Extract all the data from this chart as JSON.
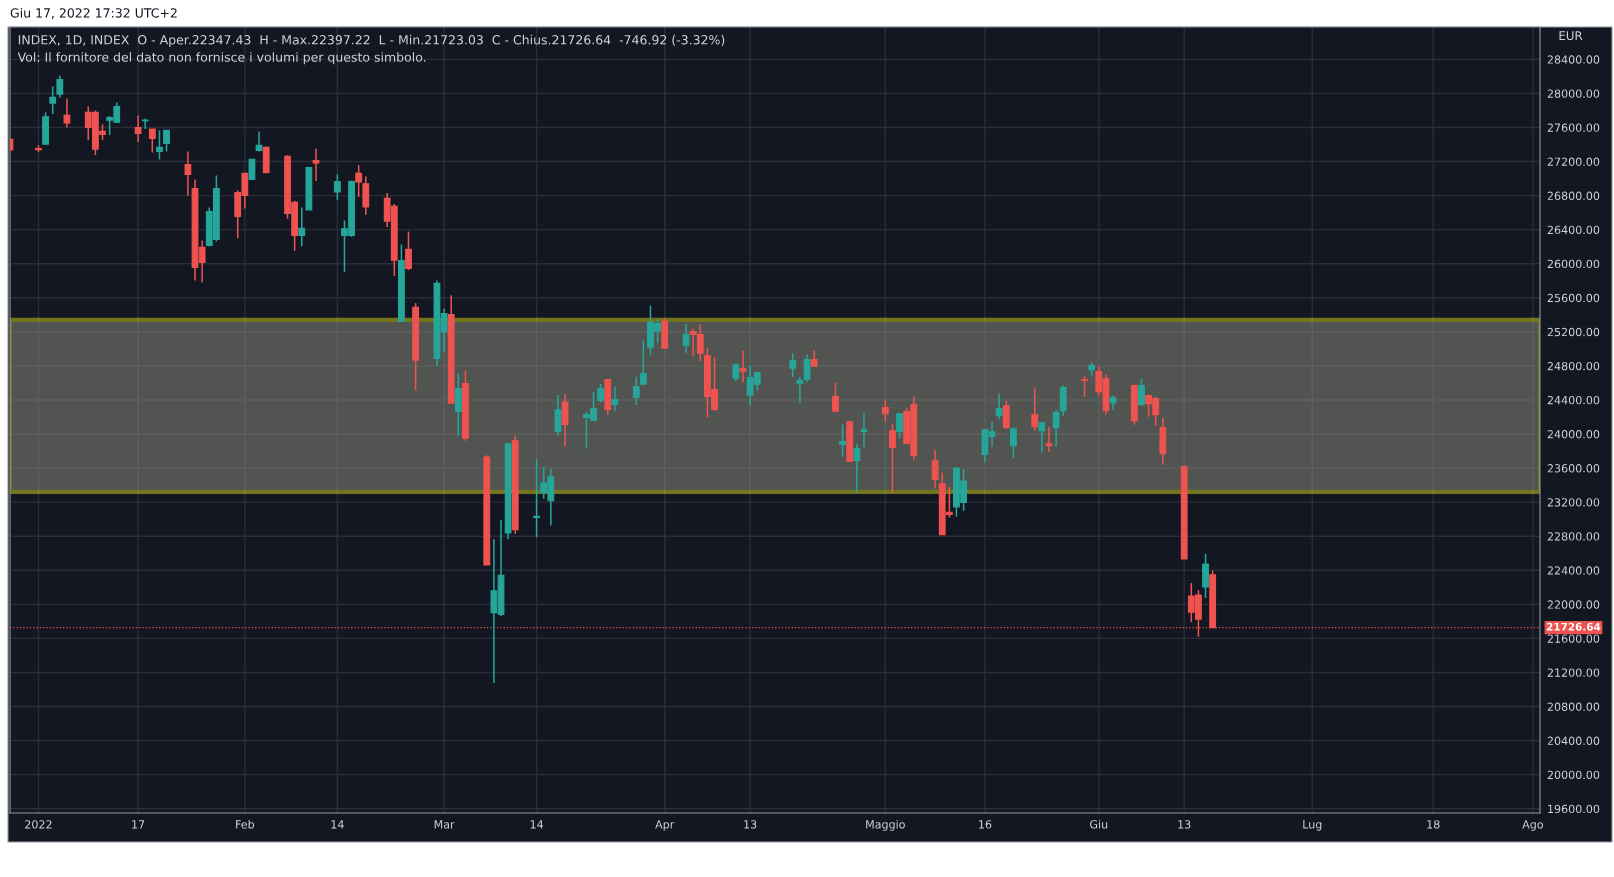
{
  "chart_data": {
    "type": "candlestick",
    "title": "INDEX, 1D, INDEX  O - Aper.22347.43  H - Max.22397.22  L - Min.21723.03  C - Chius.21726.64  -746.92 (-3.32%)",
    "ylabel": "EUR",
    "annotations": [
      "Giu 17, 2022 17:32 UTC+2",
      "Vol: Il fornitore del dato non fornisce i volumi per questo simbolo."
    ],
    "x": [
      "2021-12-30",
      "2022-01-03",
      "2022-01-04",
      "2022-01-05",
      "2022-01-06",
      "2022-01-07",
      "2022-01-10",
      "2022-01-11",
      "2022-01-12",
      "2022-01-13",
      "2022-01-14",
      "2022-01-17",
      "2022-01-18",
      "2022-01-19",
      "2022-01-20",
      "2022-01-21",
      "2022-01-24",
      "2022-01-25",
      "2022-01-26",
      "2022-01-27",
      "2022-01-28",
      "2022-01-31",
      "2022-02-01",
      "2022-02-02",
      "2022-02-03",
      "2022-02-04",
      "2022-02-07",
      "2022-02-08",
      "2022-02-09",
      "2022-02-10",
      "2022-02-11",
      "2022-02-14",
      "2022-02-15",
      "2022-02-16",
      "2022-02-17",
      "2022-02-18",
      "2022-02-21",
      "2022-02-22",
      "2022-02-23",
      "2022-02-24",
      "2022-02-25",
      "2022-02-28",
      "2022-03-01",
      "2022-03-02",
      "2022-03-03",
      "2022-03-04",
      "2022-03-07",
      "2022-03-08",
      "2022-03-09",
      "2022-03-10",
      "2022-03-11",
      "2022-03-14",
      "2022-03-15",
      "2022-03-16",
      "2022-03-17",
      "2022-03-18",
      "2022-03-21",
      "2022-03-22",
      "2022-03-23",
      "2022-03-24",
      "2022-03-25",
      "2022-03-28",
      "2022-03-29",
      "2022-03-30",
      "2022-03-31",
      "2022-04-01",
      "2022-04-04",
      "2022-04-05",
      "2022-04-06",
      "2022-04-07",
      "2022-04-08",
      "2022-04-11",
      "2022-04-12",
      "2022-04-13",
      "2022-04-14",
      "2022-04-19",
      "2022-04-20",
      "2022-04-21",
      "2022-04-22",
      "2022-04-25",
      "2022-04-26",
      "2022-04-27",
      "2022-04-28",
      "2022-04-29",
      "2022-05-02",
      "2022-05-03",
      "2022-05-04",
      "2022-05-05",
      "2022-05-06",
      "2022-05-09",
      "2022-05-10",
      "2022-05-11",
      "2022-05-12",
      "2022-05-13",
      "2022-05-16",
      "2022-05-17",
      "2022-05-18",
      "2022-05-19",
      "2022-05-20",
      "2022-05-23",
      "2022-05-24",
      "2022-05-25",
      "2022-05-26",
      "2022-05-27",
      "2022-05-30",
      "2022-05-31",
      "2022-06-01",
      "2022-06-02",
      "2022-06-03",
      "2022-06-06",
      "2022-06-07",
      "2022-06-08",
      "2022-06-09",
      "2022-06-10",
      "2022-06-13",
      "2022-06-14",
      "2022-06-15",
      "2022-06-16",
      "2022-06-17"
    ],
    "ohlc": [
      [
        27460,
        27470,
        27330,
        27335
      ],
      [
        27354,
        27390,
        27310,
        27340
      ],
      [
        27405,
        27777,
        27400,
        27726
      ],
      [
        27886,
        28082,
        27757,
        27953
      ],
      [
        27992,
        28211,
        27953,
        28164
      ],
      [
        27742,
        27941,
        27600,
        27652
      ],
      [
        27777,
        27847,
        27452,
        27600
      ],
      [
        27777,
        27800,
        27276,
        27346
      ],
      [
        27554,
        27636,
        27452,
        27519
      ],
      [
        27687,
        27734,
        27511,
        27718
      ],
      [
        27663,
        27894,
        27663,
        27847
      ],
      [
        27600,
        27742,
        27429,
        27530
      ],
      [
        27679,
        27706,
        27581,
        27687
      ],
      [
        27581,
        27581,
        27307,
        27472
      ],
      [
        27319,
        27566,
        27225,
        27366
      ],
      [
        27413,
        27566,
        27319,
        27566
      ],
      [
        27166,
        27319,
        26802,
        27049
      ],
      [
        26884,
        26990,
        25804,
        25957
      ],
      [
        26192,
        26274,
        25781,
        26016
      ],
      [
        26215,
        26661,
        26204,
        26614
      ],
      [
        26286,
        27037,
        26262,
        26884
      ],
      [
        26837,
        26861,
        26301,
        26556
      ],
      [
        27061,
        27061,
        26649,
        26802
      ],
      [
        26990,
        27225,
        26990,
        27225
      ],
      [
        27331,
        27554,
        27319,
        27390
      ],
      [
        27366,
        27378,
        27061,
        27073
      ],
      [
        27263,
        27276,
        26529,
        26591
      ],
      [
        26722,
        26738,
        26151,
        26331
      ],
      [
        26331,
        26659,
        26205,
        26415
      ],
      [
        26633,
        27129,
        26633,
        27129
      ],
      [
        27213,
        27351,
        26973,
        27183
      ],
      [
        26843,
        27049,
        26751,
        26965
      ],
      [
        26331,
        26508,
        25903,
        26411
      ],
      [
        26331,
        26978,
        26314,
        26965
      ],
      [
        27061,
        27158,
        26784,
        26961
      ],
      [
        26940,
        27024,
        26575,
        26667
      ],
      [
        26768,
        26831,
        26432,
        26499
      ],
      [
        26675,
        26701,
        25857,
        26042
      ],
      [
        25324,
        26226,
        25324,
        26037
      ],
      [
        26168,
        26377,
        25924,
        25945
      ],
      [
        25488,
        25538,
        24514,
        24867
      ],
      [
        24887,
        25802,
        24799,
        25769
      ],
      [
        25199,
        25471,
        24959,
        25416
      ],
      [
        25404,
        25630,
        24363,
        24363
      ],
      [
        24266,
        24711,
        23977,
        24535
      ],
      [
        24594,
        24745,
        23922,
        23952
      ],
      [
        23729,
        23750,
        22462,
        22462
      ],
      [
        21903,
        22764,
        21076,
        22160
      ],
      [
        21882,
        22995,
        21860,
        22340
      ],
      [
        22839,
        23886,
        22764,
        23886
      ],
      [
        23921,
        23980,
        22827,
        22878
      ],
      [
        23020,
        23710,
        22788,
        23035
      ],
      [
        23310,
        23616,
        23239,
        23427
      ],
      [
        23216,
        23592,
        22925,
        23498
      ],
      [
        24031,
        24455,
        23984,
        24286
      ],
      [
        24376,
        24463,
        23855,
        24114
      ],
      [
        24196,
        24259,
        23831,
        24227
      ],
      [
        24161,
        24494,
        24161,
        24298
      ],
      [
        24396,
        24588,
        24369,
        24533
      ],
      [
        24639,
        24639,
        24227,
        24290
      ],
      [
        24349,
        24557,
        24271,
        24404
      ],
      [
        24431,
        24674,
        24337,
        24557
      ],
      [
        24584,
        25098,
        24584,
        24710
      ],
      [
        25020,
        25510,
        24925,
        25310
      ],
      [
        25208,
        25349,
        25067,
        25298
      ],
      [
        25325,
        25365,
        25008,
        25008
      ],
      [
        25043,
        25298,
        24949,
        25169
      ],
      [
        25204,
        25239,
        24914,
        25173
      ],
      [
        25169,
        25286,
        24855,
        24949
      ],
      [
        24918,
        25012,
        24196,
        24443
      ],
      [
        24522,
        24906,
        24278,
        24290
      ],
      [
        24655,
        24835,
        24620,
        24812
      ],
      [
        24769,
        24980,
        24608,
        24737
      ],
      [
        24455,
        24804,
        24337,
        24663
      ],
      [
        24584,
        24722,
        24514,
        24722
      ],
      [
        24773,
        24945,
        24667,
        24863
      ],
      [
        24596,
        24674,
        24361,
        24627
      ],
      [
        24643,
        24933,
        24608,
        24875
      ],
      [
        24875,
        24980,
        24796,
        24796
      ],
      [
        24439,
        24604,
        24267,
        24267
      ],
      [
        23880,
        24110,
        23737,
        23912
      ],
      [
        24145,
        24157,
        23678,
        23678
      ],
      [
        23690,
        23886,
        23310,
        23827
      ],
      [
        24031,
        24251,
        23843,
        24051
      ],
      [
        24310,
        24404,
        24137,
        24239
      ],
      [
        24039,
        24122,
        23310,
        23843
      ],
      [
        24031,
        24239,
        23949,
        24239
      ],
      [
        24263,
        24310,
        23890,
        23890
      ],
      [
        24345,
        24439,
        23702,
        23749
      ],
      [
        23686,
        23812,
        23361,
        23466
      ],
      [
        23416,
        23545,
        22819,
        22819
      ],
      [
        23082,
        23376,
        23020,
        23055
      ],
      [
        23145,
        23600,
        23031,
        23600
      ],
      [
        23196,
        23588,
        23098,
        23447
      ],
      [
        23761,
        24051,
        23667,
        24051
      ],
      [
        23973,
        24145,
        23851,
        24027
      ],
      [
        24216,
        24474,
        24173,
        24298
      ],
      [
        24333,
        24392,
        24063,
        24075
      ],
      [
        23863,
        24075,
        23722,
        24063
      ],
      [
        24227,
        24545,
        24039,
        24086
      ],
      [
        24039,
        24133,
        23784,
        24133
      ],
      [
        23886,
        24086,
        23792,
        23867
      ],
      [
        24074,
        24286,
        23851,
        24251
      ],
      [
        24274,
        24569,
        24216,
        24545
      ],
      [
        24639,
        24675,
        24439,
        24631
      ],
      [
        24757,
        24839,
        24675,
        24804
      ],
      [
        24733,
        24792,
        24451,
        24498
      ],
      [
        24651,
        24698,
        24227,
        24274
      ],
      [
        24369,
        24451,
        24286,
        24427
      ],
      [
        24569,
        24580,
        24110,
        24157
      ],
      [
        24345,
        24651,
        24345,
        24569
      ],
      [
        24451,
        24463,
        24204,
        24357
      ],
      [
        24416,
        24439,
        24098,
        24227
      ],
      [
        24074,
        24192,
        23639,
        23769
      ],
      [
        23616,
        23627,
        22533,
        22533
      ],
      [
        22098,
        22251,
        21792,
        21909
      ],
      [
        22110,
        22168,
        21619,
        21827
      ],
      [
        22204,
        22592,
        22074,
        22474
      ],
      [
        22347.43,
        22397.22,
        21723.03,
        21726.64
      ]
    ],
    "colors": [
      "#ef5350",
      "#ef5350",
      "#26a69a",
      "#26a69a",
      "#26a69a",
      "#ef5350",
      "#ef5350",
      "#ef5350",
      "#ef5350",
      "#26a69a",
      "#26a69a",
      "#ef5350",
      "#26a69a",
      "#ef5350",
      "#26a69a",
      "#26a69a",
      "#ef5350",
      "#ef5350",
      "#ef5350",
      "#26a69a",
      "#26a69a",
      "#ef5350",
      "#ef5350",
      "#26a69a",
      "#26a69a",
      "#ef5350",
      "#ef5350",
      "#ef5350",
      "#26a69a",
      "#26a69a",
      "#ef5350",
      "#26a69a",
      "#26a69a",
      "#26a69a",
      "#ef5350",
      "#ef5350",
      "#ef5350",
      "#ef5350",
      "#26a69a",
      "#ef5350",
      "#ef5350",
      "#26a69a",
      "#26a69a",
      "#ef5350",
      "#26a69a",
      "#ef5350",
      "#ef5350",
      "#26a69a",
      "#26a69a",
      "#26a69a",
      "#ef5350",
      "#26a69a",
      "#26a69a",
      "#26a69a",
      "#26a69a",
      "#ef5350",
      "#26a69a",
      "#26a69a",
      "#26a69a",
      "#ef5350",
      "#26a69a",
      "#26a69a",
      "#26a69a",
      "#26a69a",
      "#26a69a",
      "#ef5350",
      "#26a69a",
      "#ef5350",
      "#ef5350",
      "#ef5350",
      "#ef5350",
      "#26a69a",
      "#ef5350",
      "#26a69a",
      "#26a69a",
      "#26a69a",
      "#26a69a",
      "#26a69a",
      "#ef5350",
      "#ef5350",
      "#26a69a",
      "#ef5350",
      "#26a69a",
      "#26a69a",
      "#ef5350",
      "#ef5350",
      "#26a69a",
      "#ef5350",
      "#ef5350",
      "#ef5350",
      "#ef5350",
      "#ef5350",
      "#26a69a",
      "#26a69a",
      "#26a69a",
      "#26a69a",
      "#26a69a",
      "#ef5350",
      "#26a69a",
      "#ef5350",
      "#26a69a",
      "#ef5350",
      "#26a69a",
      "#26a69a",
      "#ef5350",
      "#26a69a",
      "#ef5350",
      "#ef5350",
      "#26a69a",
      "#ef5350",
      "#26a69a",
      "#ef5350",
      "#ef5350",
      "#ef5350",
      "#ef5350",
      "#ef5350",
      "#ef5350",
      "#26a69a",
      "#ef5350"
    ],
    "xlim": [
      "2021-12-30",
      "2022-08-02"
    ],
    "xticks": [
      {
        "value": "2022-01-03",
        "label": "2022"
      },
      {
        "value": "2022-01-17",
        "label": "17"
      },
      {
        "value": "2022-02-01",
        "label": "Feb"
      },
      {
        "value": "2022-02-14",
        "label": "14"
      },
      {
        "value": "2022-03-01",
        "label": "Mar"
      },
      {
        "value": "2022-03-14",
        "label": "14"
      },
      {
        "value": "2022-04-01",
        "label": "Apr"
      },
      {
        "value": "2022-04-13",
        "label": "13"
      },
      {
        "value": "2022-05-02",
        "label": "Maggio"
      },
      {
        "value": "2022-05-16",
        "label": "16"
      },
      {
        "value": "2022-06-01",
        "label": "Giu"
      },
      {
        "value": "2022-06-13",
        "label": "13"
      },
      {
        "value": "2022-07-01",
        "label": "Lug"
      },
      {
        "value": "2022-07-18",
        "label": "18"
      },
      {
        "value": "2022-08-01",
        "label": "Ago"
      }
    ],
    "ylim": [
      19550,
      28780
    ],
    "yticks": [
      {
        "value": 19600,
        "label": "19600.00"
      },
      {
        "value": 20000,
        "label": "20000.00"
      },
      {
        "value": 20400,
        "label": "20400.00"
      },
      {
        "value": 20800,
        "label": "20800.00"
      },
      {
        "value": 21200,
        "label": "21200.00"
      },
      {
        "value": 21600,
        "label": "21600.00"
      },
      {
        "value": 22000,
        "label": "22000.00"
      },
      {
        "value": 22400,
        "label": "22400.00"
      },
      {
        "value": 22800,
        "label": "22800.00"
      },
      {
        "value": 23200,
        "label": "23200.00"
      },
      {
        "value": 23600,
        "label": "23600.00"
      },
      {
        "value": 24000,
        "label": "24000.00"
      },
      {
        "value": 24400,
        "label": "24400.00"
      },
      {
        "value": 24800,
        "label": "24800.00"
      },
      {
        "value": 25200,
        "label": "25200.00"
      },
      {
        "value": 25600,
        "label": "25600.00"
      },
      {
        "value": 26000,
        "label": "26000.00"
      },
      {
        "value": 26400,
        "label": "26400.00"
      },
      {
        "value": 26800,
        "label": "26800.00"
      },
      {
        "value": 27200,
        "label": "27200.00"
      },
      {
        "value": 27600,
        "label": "27600.00"
      },
      {
        "value": 28000,
        "label": "28000.00"
      },
      {
        "value": 28400,
        "label": "28400.00"
      }
    ],
    "ref_lines": [
      {
        "axis": "y",
        "value": 21726.64,
        "label": "21726.64",
        "color": "#ef5350",
        "line_style": "dotted"
      }
    ],
    "bands": [
      {
        "axis": "y",
        "from": 23320,
        "to": 25340,
        "color": "#e5e51a"
      }
    ],
    "grid": true
  }
}
